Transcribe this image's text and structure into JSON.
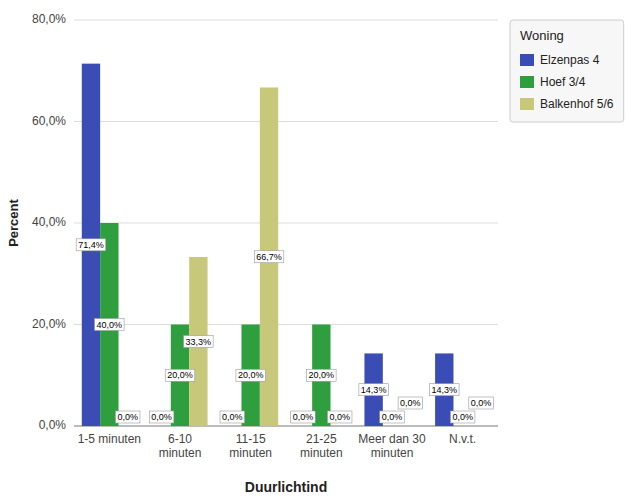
{
  "chart_data": {
    "type": "bar",
    "xlabel": "Duurlichtind",
    "ylabel": "Percent",
    "legend_title": "Woning",
    "categories": [
      "1-5 minuten",
      "6-10\nminuten",
      "11-15\nminuten",
      "21-25\nminuten",
      "Meer dan 30\nminuten",
      "N.v.t."
    ],
    "series": [
      {
        "name": "Elzenpas 4",
        "color": "#3a4db5",
        "values": [
          71.4,
          0.0,
          0.0,
          0.0,
          14.3,
          14.3
        ],
        "value_labels": [
          "71,4%",
          "0,0%",
          "0,0%",
          "0,0%",
          "14,3%",
          "14,3%"
        ]
      },
      {
        "name": "Hoef 3/4",
        "color": "#2e9e3e",
        "values": [
          40.0,
          20.0,
          20.0,
          20.0,
          0.0,
          0.0
        ],
        "value_labels": [
          "40,0%",
          "20,0%",
          "20,0%",
          "20,0%",
          "0,0%",
          "0,0%"
        ]
      },
      {
        "name": "Balkenhof 5/6",
        "color": "#c8c87a",
        "values": [
          0.0,
          33.3,
          66.7,
          0.0,
          0.0,
          0.0
        ],
        "value_labels": [
          "0,0%",
          "33,3%",
          "66,7%",
          "0,0%",
          "0,0%",
          "0,0%"
        ]
      }
    ],
    "ylim": [
      0,
      80
    ],
    "yticks": [
      {
        "value": 0,
        "label": "0,0%"
      },
      {
        "value": 20,
        "label": "20,0%"
      },
      {
        "value": 40,
        "label": "40,0%"
      },
      {
        "value": 60,
        "label": "60,0%"
      },
      {
        "value": 80,
        "label": "80,0%"
      }
    ],
    "grid": true,
    "legend": "right",
    "data_labels": true
  }
}
